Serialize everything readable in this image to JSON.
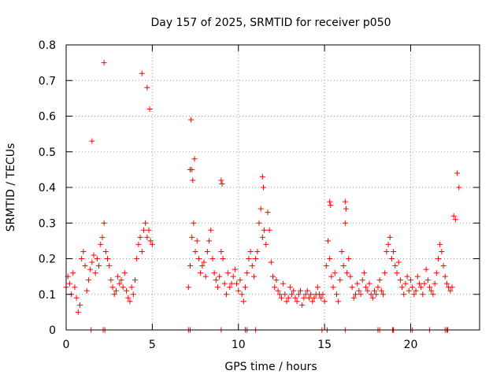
{
  "colors": {
    "series": "#ff0000",
    "grid": "#a0a0a0",
    "axis": "#000000"
  },
  "chart_data": {
    "type": "scatter",
    "title": "Day 157 of 2025, SRMTID for receiver p050",
    "xlabel": "GPS time / hours",
    "ylabel": "SRMTID / TECUs",
    "xlim": [
      0,
      24
    ],
    "ylim": [
      0,
      0.8
    ],
    "grid": true,
    "xticks": [
      0,
      5,
      10,
      15,
      20
    ],
    "yticks": [
      0,
      0.1,
      0.2,
      0.3,
      0.4,
      0.5,
      0.6,
      0.7,
      0.8
    ],
    "xtick_labels": [
      "0",
      "5",
      "10",
      "15",
      "20"
    ],
    "ytick_labels": [
      "0",
      "0.1",
      "0.2",
      "0.3",
      "0.4",
      "0.5",
      "0.6",
      "0.7",
      "0.8"
    ],
    "marker": "+",
    "series": [
      {
        "name": "SRMTID",
        "x": [
          0.0,
          0.1,
          0.2,
          0.3,
          0.4,
          0.5,
          0.6,
          0.7,
          0.8,
          0.9,
          1.0,
          1.1,
          1.2,
          1.3,
          1.4,
          1.5,
          1.6,
          1.7,
          1.8,
          1.9,
          2.0,
          2.1,
          2.2,
          2.3,
          2.4,
          2.5,
          2.6,
          2.7,
          2.8,
          2.9,
          3.0,
          3.1,
          3.2,
          3.3,
          3.4,
          3.5,
          3.6,
          3.7,
          3.8,
          3.9,
          4.0,
          4.1,
          4.2,
          4.3,
          4.4,
          4.5,
          4.6,
          4.7,
          4.8,
          4.9,
          5.0,
          7.1,
          7.2,
          7.3,
          7.4,
          7.5,
          7.6,
          7.7,
          7.8,
          7.9,
          8.0,
          8.1,
          8.2,
          8.3,
          8.4,
          8.5,
          8.6,
          8.7,
          8.8,
          8.9,
          9.0,
          9.1,
          9.2,
          9.3,
          9.4,
          9.5,
          9.6,
          9.7,
          9.8,
          9.9,
          10.0,
          10.1,
          10.2,
          10.3,
          10.4,
          10.5,
          10.6,
          10.7,
          10.8,
          10.9,
          11.0,
          11.1,
          11.2,
          11.3,
          11.4,
          11.5,
          11.6,
          11.7,
          11.8,
          11.9,
          12.0,
          12.1,
          12.2,
          12.3,
          12.4,
          12.5,
          12.6,
          12.7,
          12.8,
          12.9,
          13.0,
          13.1,
          13.2,
          13.3,
          13.4,
          13.5,
          13.6,
          13.7,
          13.8,
          13.9,
          14.0,
          14.1,
          14.2,
          14.3,
          14.4,
          14.5,
          14.6,
          14.7,
          14.8,
          14.9,
          15.0,
          15.1,
          15.2,
          15.3,
          15.4,
          15.5,
          15.6,
          15.7,
          15.8,
          15.9,
          16.0,
          16.1,
          16.2,
          16.3,
          16.4,
          16.5,
          16.6,
          16.7,
          16.8,
          16.9,
          17.0,
          17.1,
          17.2,
          17.3,
          17.4,
          17.5,
          17.6,
          17.7,
          17.8,
          17.9,
          18.0,
          18.1,
          18.2,
          18.3,
          18.4,
          18.5,
          18.6,
          18.7,
          18.8,
          18.9,
          19.0,
          19.1,
          19.2,
          19.3,
          19.4,
          19.5,
          19.6,
          19.7,
          19.8,
          19.9,
          20.0,
          20.1,
          20.2,
          20.3,
          20.4,
          20.5,
          20.6,
          20.7,
          20.8,
          20.9,
          21.0,
          21.1,
          21.2,
          21.3,
          21.4,
          21.5,
          21.6,
          21.7,
          21.8,
          21.9,
          22.0,
          22.1,
          22.2,
          22.3,
          22.4,
          22.5,
          22.6,
          22.7,
          22.8,
          1.5,
          2.2,
          4.4,
          4.7,
          4.85,
          7.25,
          7.3,
          7.35,
          7.45,
          7.2,
          9.0,
          9.05,
          11.4,
          11.45,
          15.3,
          15.35,
          16.2,
          16.25,
          18.95,
          19.0,
          22.1,
          22.15,
          1.45,
          2.15,
          2.25,
          7.1,
          7.2,
          9.0,
          10.4,
          10.5,
          11.0,
          14.85,
          15.15,
          16.2,
          18.1,
          18.2,
          19.0,
          20.0,
          20.1,
          21.1,
          22.0
        ],
        "y": [
          0.12,
          0.15,
          0.13,
          0.1,
          0.16,
          0.12,
          0.09,
          0.05,
          0.07,
          0.2,
          0.22,
          0.18,
          0.11,
          0.14,
          0.17,
          0.19,
          0.21,
          0.16,
          0.2,
          0.18,
          0.24,
          0.26,
          0.3,
          0.22,
          0.2,
          0.18,
          0.14,
          0.12,
          0.1,
          0.11,
          0.15,
          0.13,
          0.14,
          0.12,
          0.16,
          0.11,
          0.09,
          0.08,
          0.12,
          0.1,
          0.14,
          0.2,
          0.24,
          0.26,
          0.22,
          0.28,
          0.3,
          0.26,
          0.28,
          0.25,
          0.24,
          0.12,
          0.18,
          0.26,
          0.3,
          0.22,
          0.25,
          0.2,
          0.16,
          0.18,
          0.19,
          0.15,
          0.22,
          0.25,
          0.28,
          0.2,
          0.16,
          0.14,
          0.12,
          0.15,
          0.22,
          0.2,
          0.13,
          0.1,
          0.16,
          0.12,
          0.13,
          0.15,
          0.17,
          0.13,
          0.11,
          0.14,
          0.1,
          0.08,
          0.12,
          0.16,
          0.2,
          0.22,
          0.18,
          0.15,
          0.2,
          0.22,
          0.3,
          0.34,
          0.26,
          0.28,
          0.24,
          0.33,
          0.28,
          0.19,
          0.15,
          0.12,
          0.14,
          0.11,
          0.1,
          0.09,
          0.13,
          0.1,
          0.08,
          0.09,
          0.12,
          0.1,
          0.11,
          0.09,
          0.08,
          0.1,
          0.11,
          0.07,
          0.09,
          0.1,
          0.11,
          0.09,
          0.1,
          0.08,
          0.09,
          0.1,
          0.12,
          0.1,
          0.09,
          0.1,
          0.08,
          0.18,
          0.25,
          0.2,
          0.15,
          0.12,
          0.16,
          0.1,
          0.08,
          0.14,
          0.22,
          0.18,
          0.3,
          0.16,
          0.2,
          0.15,
          0.12,
          0.09,
          0.1,
          0.13,
          0.11,
          0.1,
          0.14,
          0.16,
          0.12,
          0.11,
          0.13,
          0.1,
          0.09,
          0.11,
          0.1,
          0.12,
          0.14,
          0.11,
          0.1,
          0.16,
          0.22,
          0.24,
          0.26,
          0.2,
          0.22,
          0.18,
          0.16,
          0.19,
          0.14,
          0.12,
          0.1,
          0.13,
          0.15,
          0.11,
          0.14,
          0.12,
          0.1,
          0.11,
          0.15,
          0.13,
          0.12,
          0.1,
          0.13,
          0.17,
          0.14,
          0.12,
          0.11,
          0.1,
          0.13,
          0.16,
          0.2,
          0.24,
          0.22,
          0.18,
          0.15,
          0.13,
          0.12,
          0.11,
          0.12,
          0.32,
          0.31,
          0.44,
          0.4,
          0.53,
          0.75,
          0.72,
          0.68,
          0.62,
          0.59,
          0.45,
          0.42,
          0.48,
          0.45,
          0.42,
          0.41,
          0.43,
          0.4,
          0.36,
          0.35,
          0.36,
          0.34,
          0,
          0,
          0,
          0,
          0,
          0,
          0,
          0,
          0,
          0,
          0,
          0,
          0,
          0,
          0,
          0,
          0,
          0,
          0,
          0,
          0,
          0,
          0
        ]
      }
    ]
  }
}
